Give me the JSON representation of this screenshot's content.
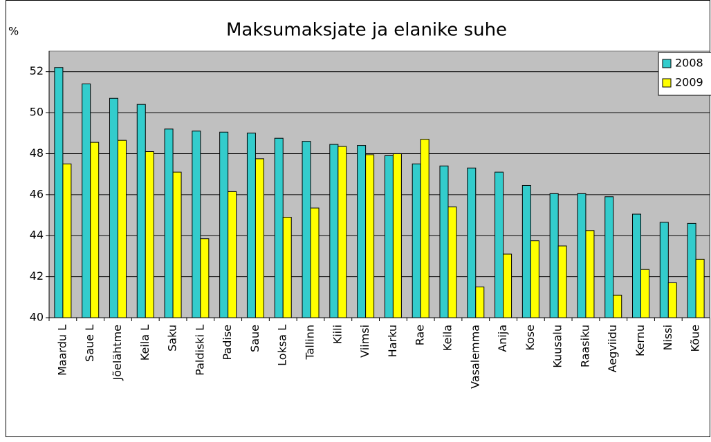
{
  "chart_data": {
    "type": "bar",
    "title": "Maksumaksjate ja elanike suhe",
    "y_label": "%",
    "categories": [
      "Maardu L",
      "Saue L",
      "Jõelähtme",
      "Keila L",
      "Saku",
      "Paldiski L",
      "Padise",
      "Saue",
      "Loksa L",
      "Tallinn",
      "Kiili",
      "Viimsi",
      "Harku",
      "Rae",
      "Keila",
      "Vasalemma",
      "Anija",
      "Kose",
      "Kuusalu",
      "Raasiku",
      "Aegviidu",
      "Kernu",
      "Nissi",
      "Kõue"
    ],
    "series": [
      {
        "name": "2008",
        "color": "#33cccc",
        "values": [
          52.2,
          51.4,
          50.7,
          50.4,
          49.2,
          49.1,
          49.05,
          49.0,
          48.75,
          48.6,
          48.45,
          48.4,
          47.9,
          47.5,
          47.4,
          47.3,
          47.1,
          46.45,
          46.05,
          46.05,
          45.9,
          45.05,
          44.65,
          44.6
        ]
      },
      {
        "name": "2009",
        "color": "#ffff00",
        "values": [
          47.5,
          48.55,
          48.65,
          48.1,
          47.1,
          43.85,
          46.15,
          47.75,
          44.9,
          45.35,
          48.35,
          47.95,
          48.0,
          48.7,
          45.4,
          41.5,
          43.1,
          43.75,
          43.5,
          44.25,
          41.1,
          42.35,
          41.7,
          42.85
        ]
      }
    ],
    "ylim": [
      40,
      53
    ],
    "yticks": [
      40,
      42,
      44,
      46,
      48,
      50,
      52
    ],
    "grid": true,
    "background": "#c0c0c0",
    "legend": "top-right"
  }
}
